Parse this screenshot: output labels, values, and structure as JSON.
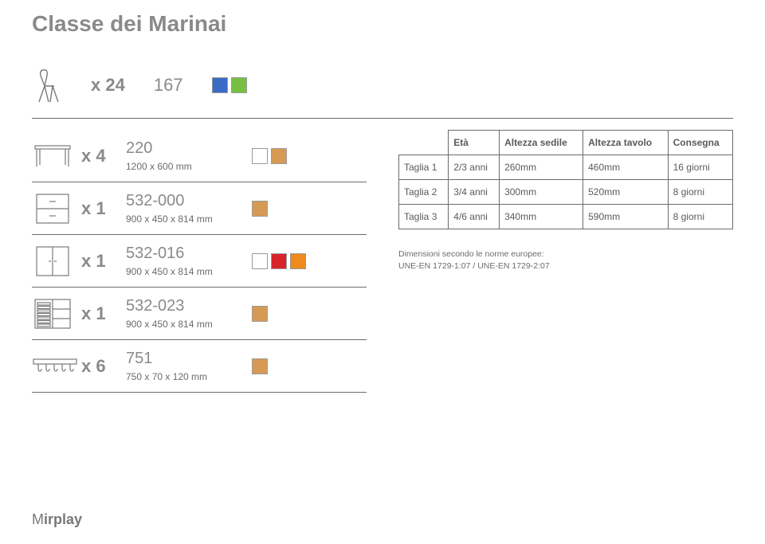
{
  "page_title": "Classe dei Marinai",
  "logo_text": "Mirplay",
  "colors": {
    "blue": "#3a6bc5",
    "green": "#77c043",
    "white_sw": "#ffffff",
    "wood": "#d79a54",
    "red": "#d8232a",
    "orange": "#ef8a1d",
    "swatch_border": "#9a9a9a"
  },
  "top": {
    "qty": "x 24",
    "model": "167",
    "swatches": [
      "blue",
      "green"
    ]
  },
  "items": [
    {
      "qty": "x 4",
      "model": "220",
      "dim": "1200 x 600 mm",
      "swatches": [
        "white_sw",
        "wood"
      ],
      "icon": "table"
    },
    {
      "qty": "x 1",
      "model": "532-000",
      "dim": "900 x 450 x 814 mm",
      "swatches": [
        "wood"
      ],
      "icon": "cabinet-2drawer"
    },
    {
      "qty": "x 1",
      "model": "532-016",
      "dim": "900 x 450 x 814 mm",
      "swatches": [
        "white_sw",
        "red",
        "orange"
      ],
      "icon": "cabinet-2door"
    },
    {
      "qty": "x 1",
      "model": "532-023",
      "dim": "900 x 450 x 814 mm",
      "swatches": [
        "wood"
      ],
      "icon": "tray-cabinet"
    },
    {
      "qty": "x 6",
      "model": "751",
      "dim": "750 x 70 x 120 mm",
      "swatches": [
        "wood"
      ],
      "icon": "hook-rail"
    }
  ],
  "spec_table": {
    "headers": [
      "",
      "Età",
      "Altezza sedile",
      "Altezza tavolo",
      "Consegna"
    ],
    "rows": [
      [
        "Taglia 1",
        "2/3 anni",
        "260mm",
        "460mm",
        "16 giorni"
      ],
      [
        "Taglia 2",
        "3/4 anni",
        "300mm",
        "520mm",
        "8 giorni"
      ],
      [
        "Taglia 3",
        "4/6 anni",
        "340mm",
        "590mm",
        "8 giorni"
      ]
    ],
    "note_line1": "Dimensioni secondo le norme europee:",
    "note_line2": "UNE-EN 1729-1:07 / UNE-EN 1729-2:07"
  }
}
